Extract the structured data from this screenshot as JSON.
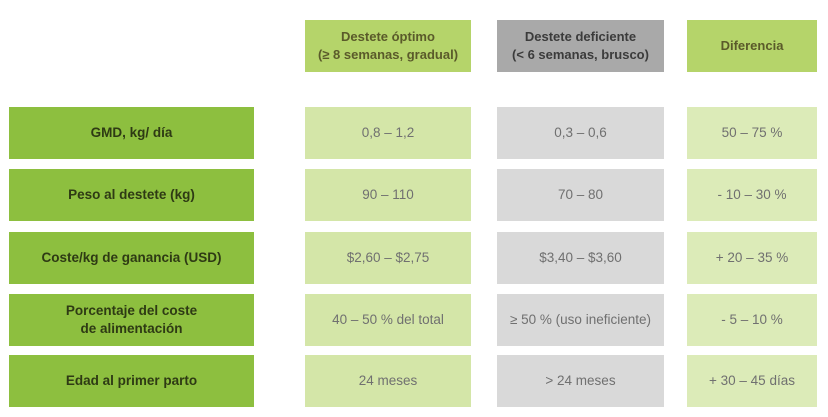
{
  "headers": {
    "optimal": "Destete óptimo\n(≥ 8 semanas, gradual)",
    "poor": "Destete deficiente\n(< 6 semanas, brusco)",
    "difference": "Diferencia"
  },
  "rows": [
    {
      "label": "GMD, kg/ día",
      "optimal": "0,8 – 1,2",
      "poor": "0,3 – 0,6",
      "difference": "50 – 75 %"
    },
    {
      "label": "Peso al destete (kg)",
      "optimal": "90 – 110",
      "poor": "70 – 80",
      "difference": "- 10 – 30 %"
    },
    {
      "label": "Coste/kg de ganancia (USD)",
      "optimal": "$2,60 – $2,75",
      "poor": "$3,40 – $3,60",
      "difference": "+ 20 – 35 %"
    },
    {
      "label": "Porcentaje del coste\nde alimentación",
      "optimal": "40 – 50 % del total",
      "poor": "≥ 50 % (uso ineficiente)",
      "difference": "- 5 – 10 %"
    },
    {
      "label": "Edad al primer parto",
      "optimal": "24 meses",
      "poor": "> 24 meses",
      "difference": "+ 30 – 45 días"
    }
  ],
  "colors": {
    "row_label": "#8dbf3f",
    "optimal_cell": "#d4e6a8",
    "poor_cell": "#d9d9d9",
    "difference_cell": "#dcebb8",
    "header_green": "#b5d46a",
    "header_gray": "#a9a9a9"
  }
}
